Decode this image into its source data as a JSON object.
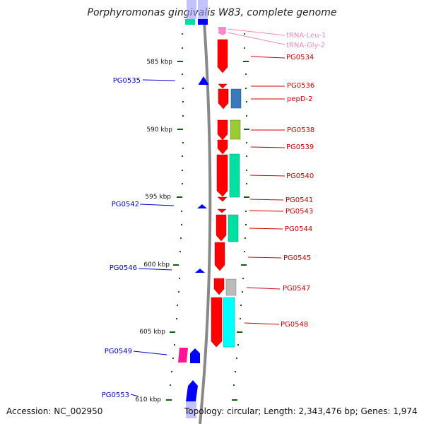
{
  "title": "Porphyromonas gingivalis W83, complete genome",
  "footer": {
    "accession": "Accession: NC_002950",
    "summary": "Topology: circular; Length: 2,343,476 bp; Genes: 1,974"
  },
  "ruler_labels": [
    "585 kbp",
    "590 kbp",
    "595 kbp",
    "600 kbp",
    "605 kbp",
    "610 kbp"
  ],
  "left_labels": [
    "PG0535",
    "PG0542",
    "PG0546",
    "PG0549",
    "PG0553"
  ],
  "right_labels": [
    "tRNA-Leu-1",
    "tRNA-Gly-2",
    "PG0534",
    "PG0536",
    "pepD-2",
    "PG0538",
    "PG0539",
    "PG0540",
    "PG0541",
    "PG0543",
    "PG0544",
    "PG0545",
    "PG0547",
    "PG0548"
  ],
  "colors": {
    "forward_gene": "#ff0000",
    "reverse_gene": "#0000ff",
    "trna": "#ff88cc",
    "right_label": "#cc0000",
    "left_label": "#0000cc",
    "trna_label": "#ee88bb",
    "tick": "#006600",
    "backbone": "#888888"
  }
}
